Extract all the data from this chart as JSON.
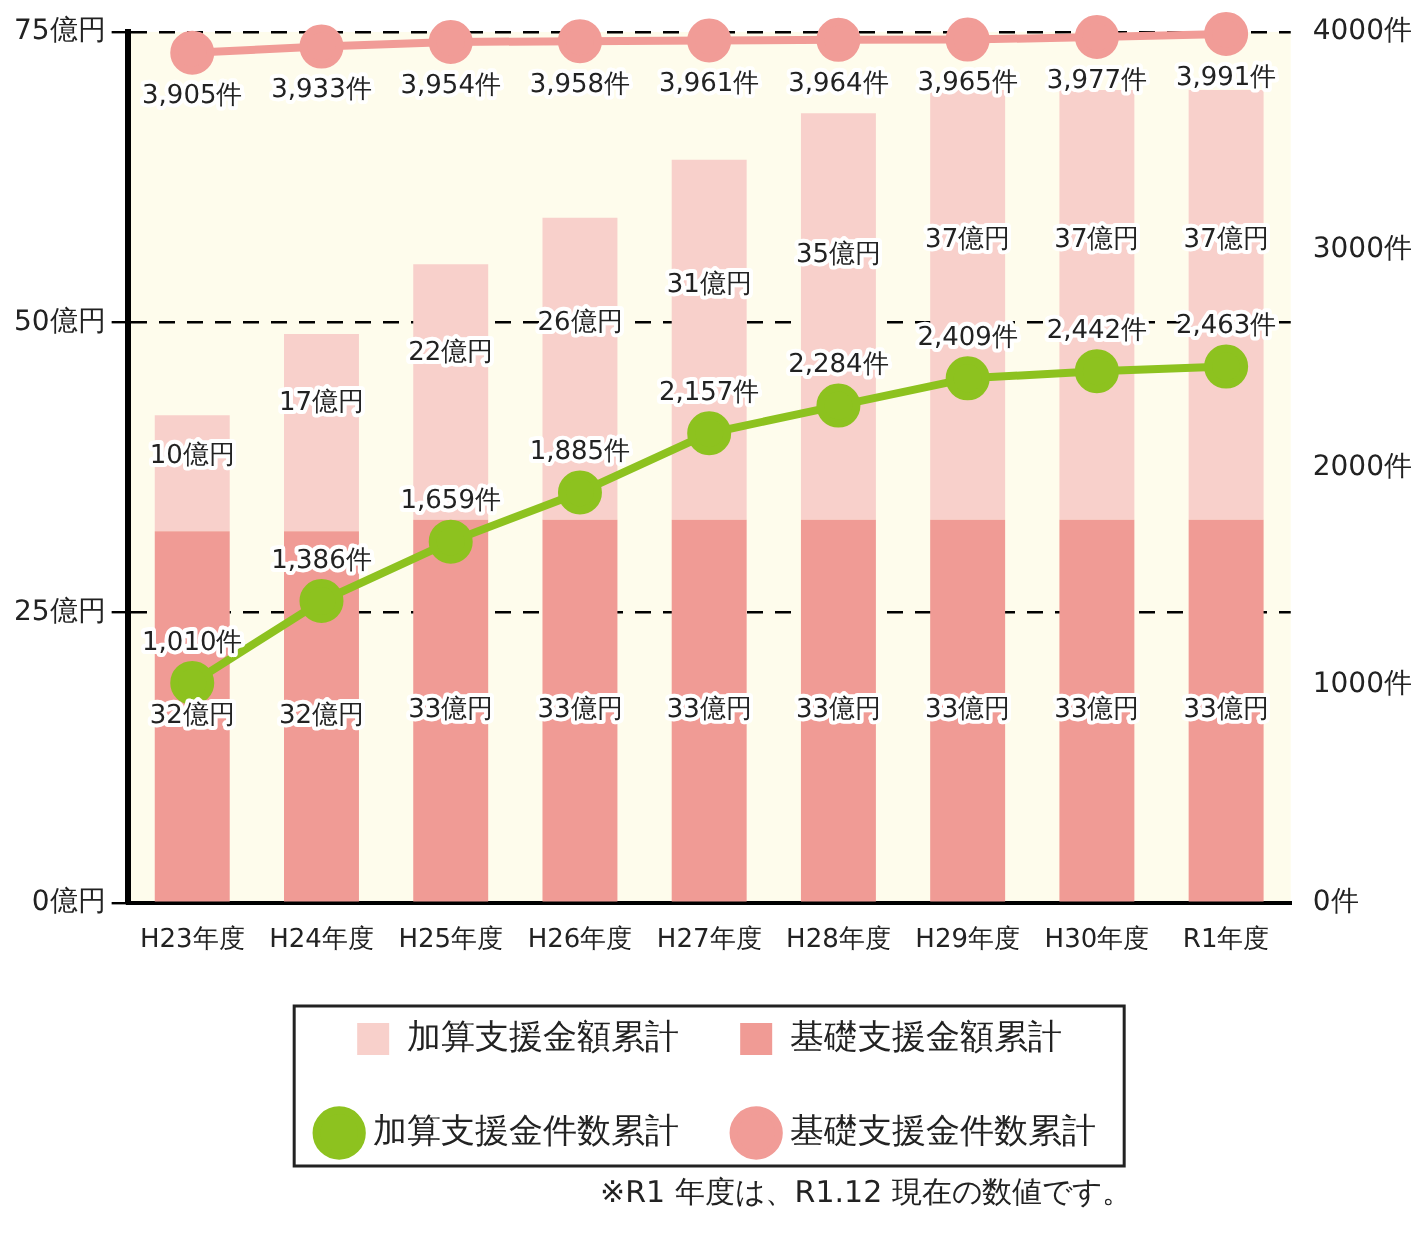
{
  "chart_data": {
    "type": "bar",
    "stacked": true,
    "categories": [
      "H23年度",
      "H24年度",
      "H25年度",
      "H26年度",
      "H27年度",
      "H28年度",
      "H29年度",
      "H30年度",
      "R1年度"
    ],
    "series": [
      {
        "name": "基礎支援金額累計",
        "color": "#f09b95",
        "values": [
          32,
          32,
          33,
          33,
          33,
          33,
          33,
          33,
          33
        ],
        "value_labels": [
          "32億円",
          "32億円",
          "33億円",
          "33億円",
          "33億円",
          "33億円",
          "33億円",
          "33億円",
          "33億円"
        ]
      },
      {
        "name": "加算支援金額累計",
        "color": "#f8d0cb",
        "values": [
          10,
          17,
          22,
          26,
          31,
          35,
          37,
          37,
          37
        ],
        "value_labels": [
          "10億円",
          "17億円",
          "22億円",
          "26億円",
          "31億円",
          "35億円",
          "37億円",
          "37億円",
          "37億円"
        ]
      },
      {
        "name": "加算支援金件数累計",
        "type": "line",
        "axis": "y2",
        "color": "#8dc21f",
        "marker": "circle",
        "values": [
          1010,
          1386,
          1659,
          1885,
          2157,
          2284,
          2409,
          2442,
          2463
        ],
        "value_labels": [
          "1,010件",
          "1,386件",
          "1,659件",
          "1,885件",
          "2,157件",
          "2,284件",
          "2,409件",
          "2,442件",
          "2,463件"
        ]
      },
      {
        "name": "基礎支援金件数累計",
        "type": "line",
        "axis": "y2",
        "color": "#f19c97",
        "marker": "circle",
        "values": [
          3905,
          3933,
          3954,
          3958,
          3961,
          3964,
          3965,
          3977,
          3991
        ],
        "value_labels": [
          "3,905件",
          "3,933件",
          "3,954件",
          "3,958件",
          "3,961件",
          "3,964件",
          "3,965件",
          "3,977件",
          "3,991件"
        ]
      }
    ],
    "ylim": [
      0,
      75
    ],
    "yticks": [
      {
        "value": 0,
        "label": "0億円"
      },
      {
        "value": 25,
        "label": "25億円"
      },
      {
        "value": 50,
        "label": "50億円"
      },
      {
        "value": 75,
        "label": "75億円"
      }
    ],
    "y2lim": [
      0,
      4000
    ],
    "y2ticks": [
      {
        "value": 0,
        "label": "0件"
      },
      {
        "value": 1000,
        "label": "1000件"
      },
      {
        "value": 2000,
        "label": "2000件"
      },
      {
        "value": 3000,
        "label": "3000件"
      },
      {
        "value": 4000,
        "label": "4000件"
      }
    ],
    "grid": "y",
    "line_style": "solid",
    "legend": "bottom",
    "annotations": [
      "※R1 年度は、R1.12 現在の数値です。"
    ]
  }
}
